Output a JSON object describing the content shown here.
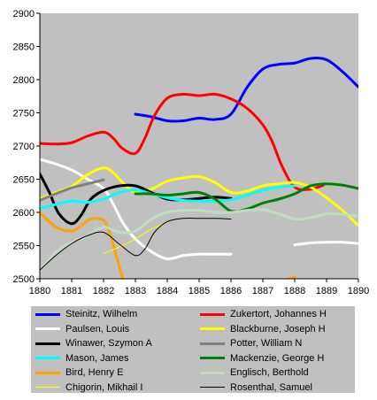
{
  "chart_data": {
    "type": "line",
    "title": "",
    "xlabel": "",
    "ylabel": "",
    "xlim": [
      1880,
      1890
    ],
    "ylim": [
      2500,
      2900
    ],
    "x_ticks": [
      "1880",
      "1881",
      "1882",
      "1883",
      "1884",
      "1885",
      "1886",
      "1887",
      "1888",
      "1889",
      "1890"
    ],
    "y_ticks": [
      "2500",
      "2550",
      "2600",
      "2650",
      "2700",
      "2750",
      "2800",
      "2850",
      "2900"
    ],
    "grid": false,
    "plot_background": "#c0c0c0",
    "legend_position": "bottom",
    "series": [
      {
        "name": "Steinitz, Wilhelm",
        "color": "#0000ff",
        "width": 3,
        "points": [
          [
            1883,
            2748
          ],
          [
            1883.5,
            2744
          ],
          [
            1884,
            2738
          ],
          [
            1884.5,
            2738
          ],
          [
            1885,
            2742
          ],
          [
            1885.5,
            2740
          ],
          [
            1886,
            2748
          ],
          [
            1886.5,
            2788
          ],
          [
            1887,
            2816
          ],
          [
            1887.5,
            2823
          ],
          [
            1888,
            2825
          ],
          [
            1888.5,
            2832
          ],
          [
            1889,
            2830
          ],
          [
            1889.5,
            2812
          ],
          [
            1890,
            2789
          ]
        ]
      },
      {
        "name": "Zukertort, Johannes H",
        "color": "#ff0000",
        "width": 3,
        "points": [
          [
            1880,
            2704
          ],
          [
            1880.5,
            2703
          ],
          [
            1881,
            2705
          ],
          [
            1881.5,
            2715
          ],
          [
            1882,
            2721
          ],
          [
            1882.3,
            2712
          ],
          [
            1882.6,
            2696
          ],
          [
            1883,
            2689
          ],
          [
            1883.3,
            2712
          ],
          [
            1883.6,
            2746
          ],
          [
            1884,
            2772
          ],
          [
            1884.5,
            2778
          ],
          [
            1885,
            2776
          ],
          [
            1885.5,
            2778
          ],
          [
            1886,
            2771
          ],
          [
            1886.5,
            2757
          ],
          [
            1887,
            2732
          ],
          [
            1887.3,
            2706
          ],
          [
            1887.6,
            2670
          ],
          [
            1888,
            2638
          ],
          [
            1888.5,
            2635
          ],
          [
            1888.9,
            2641
          ]
        ]
      },
      {
        "name": "Paulsen, Louis",
        "color": "#ffffff",
        "width": 3,
        "points": [
          [
            1880,
            2680
          ],
          [
            1880.5,
            2673
          ],
          [
            1881,
            2664
          ],
          [
            1881.5,
            2650
          ],
          [
            1882,
            2636
          ],
          [
            1882.3,
            2613
          ],
          [
            1882.6,
            2585
          ],
          [
            1883,
            2560
          ],
          [
            1883.5,
            2541
          ],
          [
            1884,
            2530
          ],
          [
            1884.5,
            2535
          ],
          [
            1885,
            2537
          ],
          [
            1885.5,
            2537
          ],
          [
            1886,
            2537
          ]
        ]
      },
      {
        "name": "Paulsen, Louis (later)",
        "color": "#ffffff",
        "width": 3,
        "legend": false,
        "points": [
          [
            1888,
            2551
          ],
          [
            1888.5,
            2554
          ],
          [
            1889,
            2555
          ],
          [
            1889.5,
            2555
          ],
          [
            1890,
            2553
          ]
        ]
      },
      {
        "name": "Blackburne, Joseph H",
        "color": "#ffff00",
        "width": 3,
        "points": [
          [
            1880,
            2620
          ],
          [
            1880.5,
            2630
          ],
          [
            1881,
            2639
          ],
          [
            1881.5,
            2657
          ],
          [
            1882,
            2667
          ],
          [
            1882.3,
            2660
          ],
          [
            1882.6,
            2645
          ],
          [
            1883,
            2630
          ],
          [
            1883.5,
            2635
          ],
          [
            1884,
            2647
          ],
          [
            1884.5,
            2652
          ],
          [
            1885,
            2654
          ],
          [
            1885.5,
            2645
          ],
          [
            1886,
            2630
          ],
          [
            1886.5,
            2632
          ],
          [
            1887,
            2640
          ],
          [
            1887.5,
            2643
          ],
          [
            1888,
            2645
          ],
          [
            1888.5,
            2638
          ],
          [
            1889,
            2622
          ],
          [
            1889.5,
            2603
          ],
          [
            1890,
            2580
          ]
        ]
      },
      {
        "name": "Winawer, Szymon A",
        "color": "#000000",
        "width": 3,
        "points": [
          [
            1880,
            2658
          ],
          [
            1880.3,
            2630
          ],
          [
            1880.6,
            2598
          ],
          [
            1881,
            2583
          ],
          [
            1881.3,
            2596
          ],
          [
            1881.6,
            2620
          ],
          [
            1882,
            2633
          ],
          [
            1882.5,
            2640
          ],
          [
            1883,
            2640
          ],
          [
            1883.5,
            2630
          ],
          [
            1884,
            2620
          ],
          [
            1884.5,
            2619
          ],
          [
            1885,
            2621
          ],
          [
            1885.5,
            2623
          ],
          [
            1886,
            2621
          ]
        ]
      },
      {
        "name": "Potter, William N",
        "color": "#808080",
        "width": 3,
        "points": [
          [
            1880,
            2618
          ],
          [
            1880.5,
            2628
          ],
          [
            1881,
            2637
          ],
          [
            1881.5,
            2643
          ],
          [
            1882,
            2649
          ]
        ]
      },
      {
        "name": "Mason, James",
        "color": "#00ffff",
        "width": 3,
        "points": [
          [
            1880,
            2606
          ],
          [
            1880.5,
            2612
          ],
          [
            1881,
            2617
          ],
          [
            1881.5,
            2615
          ],
          [
            1882,
            2620
          ],
          [
            1882.5,
            2630
          ],
          [
            1883,
            2634
          ],
          [
            1883.5,
            2628
          ],
          [
            1884,
            2622
          ],
          [
            1884.5,
            2618
          ],
          [
            1885,
            2617
          ],
          [
            1885.5,
            2617
          ],
          [
            1886,
            2619
          ],
          [
            1886.5,
            2626
          ],
          [
            1887,
            2633
          ],
          [
            1887.5,
            2638
          ],
          [
            1888,
            2640
          ]
        ]
      },
      {
        "name": "Mackenzie, George H",
        "color": "#008000",
        "width": 3,
        "points": [
          [
            1883,
            2628
          ],
          [
            1883.5,
            2628
          ],
          [
            1884,
            2626
          ],
          [
            1884.5,
            2628
          ],
          [
            1885,
            2630
          ],
          [
            1885.5,
            2620
          ],
          [
            1886,
            2602
          ],
          [
            1886.5,
            2605
          ],
          [
            1887,
            2614
          ],
          [
            1887.5,
            2620
          ],
          [
            1888,
            2628
          ],
          [
            1888.5,
            2640
          ],
          [
            1889,
            2643
          ],
          [
            1889.5,
            2641
          ],
          [
            1890,
            2636
          ]
        ]
      },
      {
        "name": "Bird, Henry E",
        "color": "#ffa500",
        "width": 3,
        "points": [
          [
            1880,
            2600
          ],
          [
            1880.5,
            2578
          ],
          [
            1881,
            2572
          ],
          [
            1881.3,
            2580
          ],
          [
            1881.6,
            2590
          ],
          [
            1882,
            2588
          ],
          [
            1882.2,
            2568
          ],
          [
            1882.4,
            2535
          ],
          [
            1882.6,
            2500
          ]
        ]
      },
      {
        "name": "Bird, Henry E (later)",
        "color": "#ffa500",
        "width": 3,
        "legend": false,
        "points": [
          [
            1887.8,
            2500
          ],
          [
            1888,
            2503
          ]
        ]
      },
      {
        "name": "Englisch, Berthold",
        "color": "#c0dcc0",
        "width": 3,
        "points": [
          [
            1880,
            2512
          ],
          [
            1880.5,
            2540
          ],
          [
            1881,
            2555
          ],
          [
            1881.5,
            2565
          ],
          [
            1882,
            2578
          ],
          [
            1882.5,
            2570
          ],
          [
            1883,
            2572
          ],
          [
            1883.5,
            2590
          ],
          [
            1884,
            2600
          ],
          [
            1884.5,
            2603
          ],
          [
            1885,
            2603
          ],
          [
            1885.5,
            2600
          ],
          [
            1886,
            2600
          ],
          [
            1886.5,
            2603
          ],
          [
            1887,
            2604
          ],
          [
            1887.5,
            2598
          ],
          [
            1888,
            2590
          ],
          [
            1888.5,
            2592
          ],
          [
            1889,
            2598
          ],
          [
            1889.5,
            2597
          ],
          [
            1890,
            2594
          ]
        ]
      },
      {
        "name": "Chigorin, Mikhail I",
        "color": "#ffff00",
        "width": 1,
        "points": [
          [
            1882,
            2538
          ],
          [
            1882.5,
            2548
          ],
          [
            1883,
            2560
          ],
          [
            1883.5,
            2575
          ],
          [
            1884,
            2585
          ]
        ]
      },
      {
        "name": "Rosenthal, Samuel",
        "color": "#000000",
        "width": 1,
        "points": [
          [
            1880,
            2513
          ],
          [
            1880.5,
            2535
          ],
          [
            1881,
            2553
          ],
          [
            1881.5,
            2565
          ],
          [
            1882,
            2570
          ],
          [
            1882.5,
            2552
          ],
          [
            1883,
            2535
          ],
          [
            1883.3,
            2545
          ],
          [
            1883.6,
            2570
          ],
          [
            1884,
            2586
          ],
          [
            1884.5,
            2591
          ],
          [
            1885,
            2591
          ],
          [
            1885.5,
            2591
          ],
          [
            1886,
            2590
          ]
        ]
      }
    ]
  },
  "legend": {
    "background": "#c0c0c0",
    "entries": [
      {
        "label": "Steinitz, Wilhelm",
        "color": "#0000ff",
        "width": 3
      },
      {
        "label": "Zukertort, Johannes H",
        "color": "#ff0000",
        "width": 3
      },
      {
        "label": "Paulsen, Louis",
        "color": "#ffffff",
        "width": 3
      },
      {
        "label": "Blackburne, Joseph H",
        "color": "#ffff00",
        "width": 3
      },
      {
        "label": "Winawer, Szymon A",
        "color": "#000000",
        "width": 3
      },
      {
        "label": "Potter, William N",
        "color": "#808080",
        "width": 3
      },
      {
        "label": "Mason, James",
        "color": "#00ffff",
        "width": 3
      },
      {
        "label": "Mackenzie, George H",
        "color": "#008000",
        "width": 3
      },
      {
        "label": "Bird, Henry E",
        "color": "#ffa500",
        "width": 3
      },
      {
        "label": "Englisch, Berthold",
        "color": "#c0dcc0",
        "width": 3
      },
      {
        "label": "Chigorin, Mikhail I",
        "color": "#ffff00",
        "width": 1
      },
      {
        "label": "Rosenthal, Samuel",
        "color": "#000000",
        "width": 1
      }
    ]
  }
}
